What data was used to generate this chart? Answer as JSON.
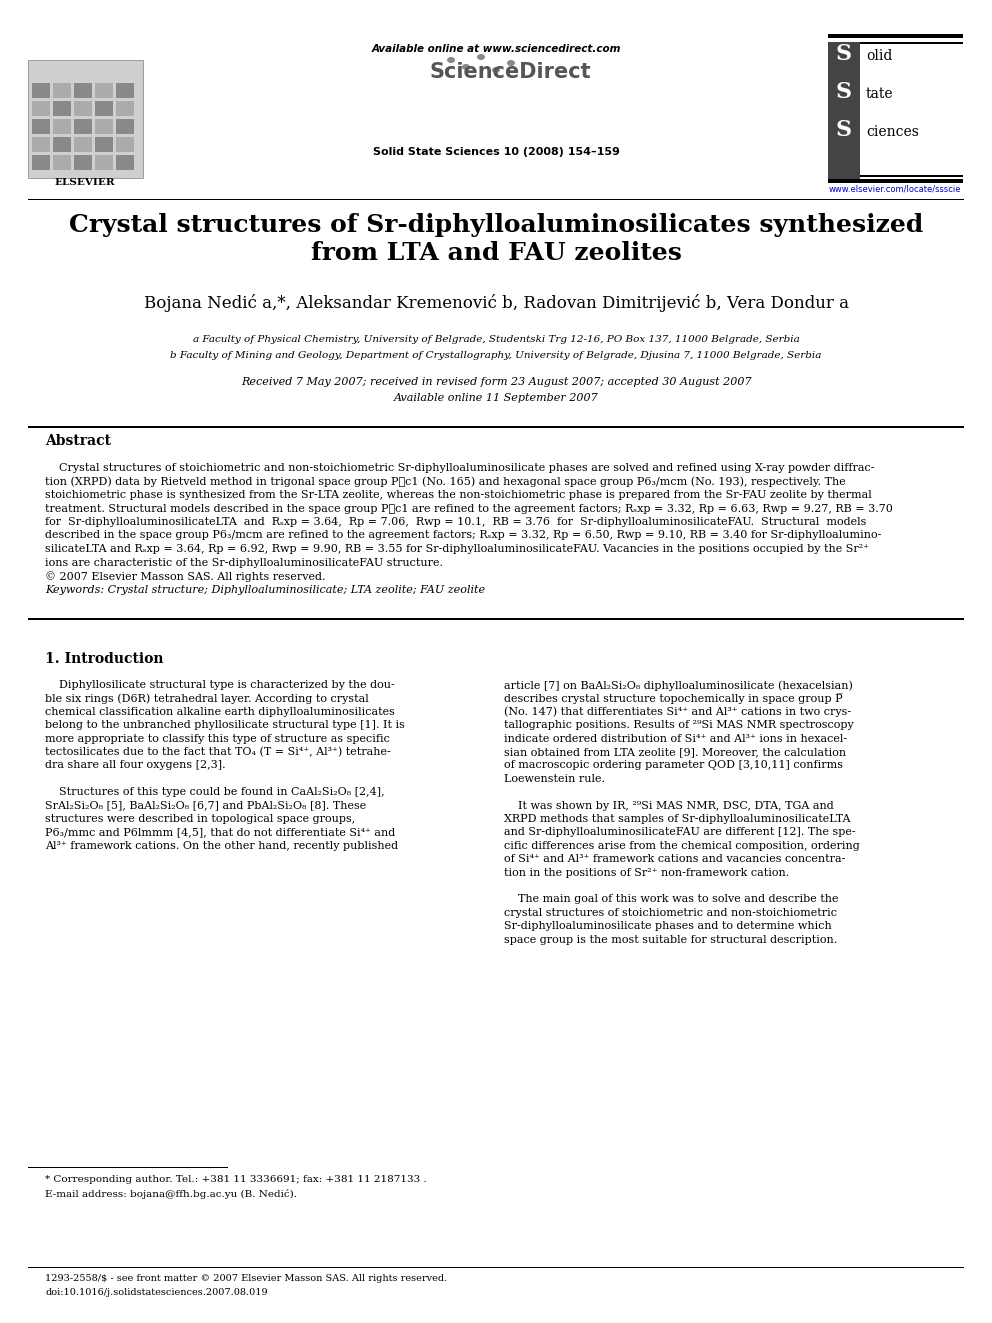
{
  "background_color": "#ffffff",
  "available_online": "Available online at www.sciencedirect.com",
  "journal": "Solid State Sciences 10 (2008) 154–159",
  "journal_name_lines": [
    "Solid",
    "State",
    "Sciences"
  ],
  "url": "www.elsevier.com/locate/ssscie",
  "title_line1": "Crystal structures of Sr-diphylloaluminosilicates synthesized",
  "title_line2": "from LTA and FAU zeolites",
  "authors": "Bojana Nedić a,*, Aleksandar Kremenović b, Radovan Dimitrijević b, Vera Dondur a",
  "affil_a": "a Faculty of Physical Chemistry, University of Belgrade, Studentski Trg 12-16, PO Box 137, 11000 Belgrade, Serbia",
  "affil_b": "b Faculty of Mining and Geology, Department of Crystallography, University of Belgrade, Djusina 7, 11000 Belgrade, Serbia",
  "received": "Received 7 May 2007; received in revised form 23 August 2007; accepted 30 August 2007",
  "available": "Available online 11 September 2007",
  "abstract_title": "Abstract",
  "keywords": "Keywords: Crystal structure; Diphylloaluminosilicate; LTA zeolite; FAU zeolite",
  "section1_title": "1. Introduction",
  "footnote_star": "* Corresponding author. Tel.: +381 11 3336691; fax: +381 11 2187133 .",
  "footnote_email": "E-mail address: bojana@ffh.bg.ac.yu (B. Nedić).",
  "bottom_left": "1293-2558/$ - see front matter © 2007 Elsevier Masson SAS. All rights reserved.",
  "doi": "doi:10.1016/j.solidstatesciences.2007.08.019"
}
